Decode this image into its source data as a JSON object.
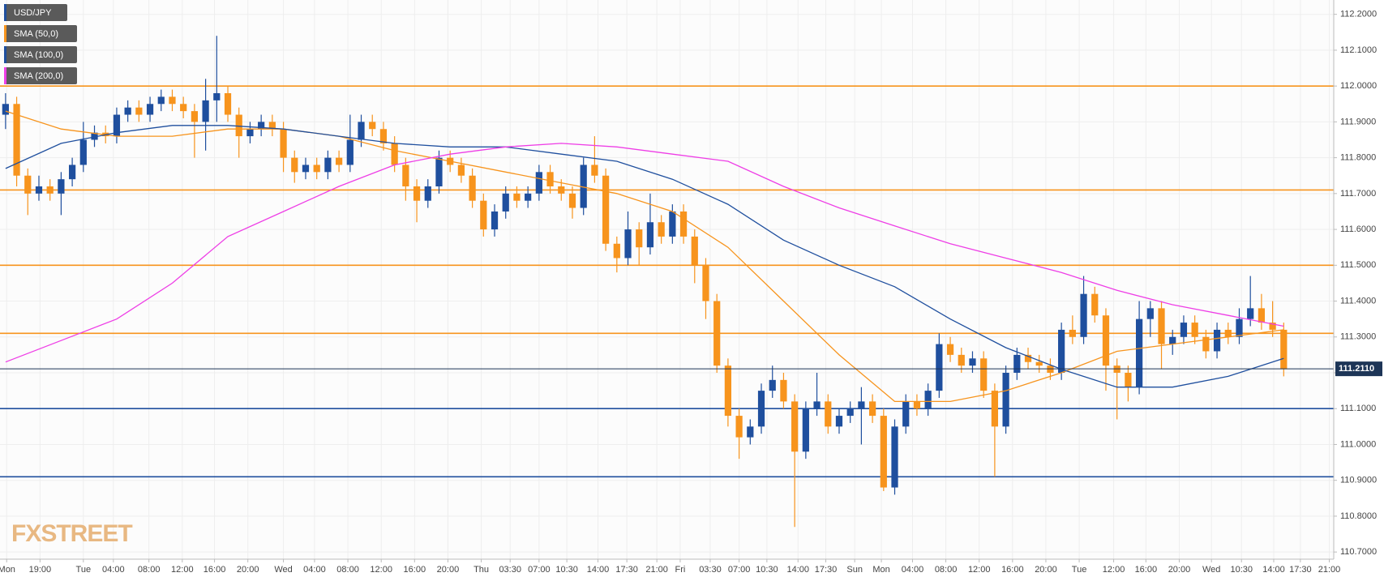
{
  "chart_data": {
    "type": "candlestick",
    "watermark": "FXSTREET",
    "grid": true,
    "xlim": [
      -0.5,
      119.5
    ],
    "ylim": [
      110.68,
      112.24
    ],
    "x": [
      0,
      1,
      2,
      3,
      4,
      5,
      6,
      7,
      8,
      9,
      10,
      11,
      12,
      13,
      14,
      15,
      16,
      17,
      18,
      19,
      20,
      21,
      22,
      23,
      24,
      25,
      26,
      27,
      28,
      29,
      30,
      31,
      32,
      33,
      34,
      35,
      36,
      37,
      38,
      39,
      40,
      41,
      42,
      43,
      44,
      45,
      46,
      47,
      48,
      49,
      50,
      51,
      52,
      53,
      54,
      55,
      56,
      57,
      58,
      59,
      60,
      61,
      62,
      63,
      64,
      65,
      66,
      67,
      68,
      69,
      70,
      71,
      72,
      73,
      74,
      75,
      76,
      77,
      78,
      79,
      80,
      81,
      82,
      83,
      84,
      85,
      86,
      87,
      88,
      89,
      90,
      91,
      92,
      93,
      94,
      95,
      96,
      97,
      98,
      99,
      100,
      101,
      102,
      103,
      104,
      105,
      106,
      107,
      108,
      109,
      110,
      111,
      112,
      113,
      114,
      115
    ],
    "series": [
      {
        "name": "USD/JPY",
        "up_color": "#1f4f9e",
        "down_color": "#f7941d",
        "open": [
          111.92,
          111.95,
          111.75,
          111.7,
          111.72,
          111.7,
          111.74,
          111.78,
          111.85,
          111.87,
          111.86,
          111.92,
          111.94,
          111.92,
          111.95,
          111.97,
          111.95,
          111.93,
          111.9,
          111.96,
          111.98,
          111.92,
          111.86,
          111.88,
          111.9,
          111.88,
          111.8,
          111.76,
          111.78,
          111.76,
          111.8,
          111.78,
          111.85,
          111.9,
          111.88,
          111.84,
          111.78,
          111.72,
          111.68,
          111.72,
          111.8,
          111.78,
          111.75,
          111.68,
          111.6,
          111.65,
          111.7,
          111.68,
          111.7,
          111.76,
          111.72,
          111.7,
          111.66,
          111.78,
          111.75,
          111.56,
          111.52,
          111.6,
          111.55,
          111.62,
          111.58,
          111.65,
          111.58,
          111.5,
          111.4,
          111.22,
          111.08,
          111.02,
          111.05,
          111.15,
          111.18,
          111.12,
          110.98,
          111.1,
          111.12,
          111.05,
          111.08,
          111.1,
          111.12,
          111.08,
          110.88,
          111.05,
          111.12,
          111.1,
          111.15,
          111.28,
          111.25,
          111.22,
          111.24,
          111.15,
          111.05,
          111.2,
          111.25,
          111.23,
          111.22,
          111.2,
          111.32,
          111.3,
          111.42,
          111.36,
          111.22,
          111.2,
          111.16,
          111.35,
          111.38,
          111.28,
          111.3,
          111.34,
          111.3,
          111.26,
          111.32,
          111.3,
          111.35,
          111.38,
          111.34,
          111.32
        ],
        "high": [
          111.98,
          111.97,
          111.77,
          111.75,
          111.74,
          111.76,
          111.8,
          111.9,
          111.89,
          111.89,
          111.94,
          111.96,
          111.96,
          111.97,
          111.99,
          111.99,
          111.97,
          111.95,
          112.02,
          112.14,
          112.0,
          111.94,
          111.9,
          111.92,
          111.92,
          111.9,
          111.82,
          111.8,
          111.8,
          111.82,
          111.82,
          111.92,
          111.92,
          111.92,
          111.9,
          111.86,
          111.8,
          111.74,
          111.74,
          111.82,
          111.82,
          111.8,
          111.77,
          111.7,
          111.67,
          111.72,
          111.72,
          111.72,
          111.78,
          111.78,
          111.74,
          111.72,
          111.8,
          111.86,
          111.77,
          111.58,
          111.65,
          111.62,
          111.7,
          111.64,
          111.67,
          111.67,
          111.6,
          111.52,
          111.42,
          111.24,
          111.1,
          111.07,
          111.17,
          111.22,
          111.2,
          111.14,
          111.12,
          111.2,
          111.14,
          111.1,
          111.12,
          111.16,
          111.14,
          111.1,
          111.07,
          111.14,
          111.14,
          111.17,
          111.31,
          111.3,
          111.27,
          111.26,
          111.26,
          111.17,
          111.22,
          111.27,
          111.27,
          111.25,
          111.24,
          111.34,
          111.36,
          111.47,
          111.44,
          111.38,
          111.24,
          111.22,
          111.4,
          111.4,
          111.4,
          111.32,
          111.36,
          111.36,
          111.32,
          111.34,
          111.34,
          111.38,
          111.47,
          111.42,
          111.4,
          111.34
        ],
        "low": [
          111.88,
          111.72,
          111.64,
          111.68,
          111.68,
          111.64,
          111.72,
          111.76,
          111.83,
          111.84,
          111.84,
          111.9,
          111.9,
          111.9,
          111.93,
          111.93,
          111.91,
          111.8,
          111.82,
          111.9,
          111.9,
          111.8,
          111.84,
          111.86,
          111.86,
          111.76,
          111.73,
          111.74,
          111.74,
          111.74,
          111.76,
          111.76,
          111.83,
          111.86,
          111.82,
          111.76,
          111.68,
          111.62,
          111.66,
          111.7,
          111.76,
          111.73,
          111.66,
          111.58,
          111.58,
          111.63,
          111.66,
          111.66,
          111.68,
          111.7,
          111.68,
          111.63,
          111.64,
          111.73,
          111.54,
          111.48,
          111.5,
          111.5,
          111.53,
          111.56,
          111.56,
          111.56,
          111.45,
          111.35,
          111.2,
          111.05,
          110.96,
          111.0,
          111.03,
          111.13,
          111.1,
          110.77,
          110.96,
          111.08,
          111.03,
          111.03,
          111.06,
          111.0,
          111.06,
          110.87,
          110.86,
          111.03,
          111.08,
          111.08,
          111.13,
          111.23,
          111.2,
          111.2,
          111.13,
          110.91,
          111.03,
          111.18,
          111.21,
          111.2,
          111.18,
          111.18,
          111.28,
          111.28,
          111.34,
          111.15,
          111.07,
          111.12,
          111.14,
          111.3,
          111.21,
          111.25,
          111.28,
          111.28,
          111.24,
          111.24,
          111.28,
          111.28,
          111.33,
          111.32,
          111.3,
          111.19
        ],
        "close": [
          111.95,
          111.75,
          111.7,
          111.72,
          111.7,
          111.74,
          111.78,
          111.85,
          111.87,
          111.86,
          111.92,
          111.94,
          111.92,
          111.95,
          111.97,
          111.95,
          111.93,
          111.9,
          111.96,
          111.98,
          111.92,
          111.86,
          111.88,
          111.9,
          111.88,
          111.8,
          111.76,
          111.78,
          111.76,
          111.8,
          111.78,
          111.85,
          111.9,
          111.88,
          111.84,
          111.78,
          111.72,
          111.68,
          111.72,
          111.8,
          111.78,
          111.75,
          111.68,
          111.6,
          111.65,
          111.7,
          111.68,
          111.7,
          111.76,
          111.72,
          111.7,
          111.66,
          111.78,
          111.75,
          111.56,
          111.52,
          111.6,
          111.55,
          111.62,
          111.58,
          111.65,
          111.58,
          111.5,
          111.4,
          111.22,
          111.08,
          111.02,
          111.05,
          111.15,
          111.18,
          111.12,
          110.98,
          111.1,
          111.12,
          111.05,
          111.08,
          111.1,
          111.12,
          111.08,
          110.88,
          111.05,
          111.12,
          111.1,
          111.15,
          111.28,
          111.25,
          111.22,
          111.24,
          111.15,
          111.05,
          111.2,
          111.25,
          111.23,
          111.22,
          111.2,
          111.32,
          111.3,
          111.42,
          111.36,
          111.22,
          111.2,
          111.16,
          111.35,
          111.38,
          111.28,
          111.3,
          111.34,
          111.3,
          111.26,
          111.32,
          111.3,
          111.35,
          111.38,
          111.34,
          111.32,
          111.21
        ]
      }
    ],
    "overlays": [
      {
        "name": "SMA (50,0)",
        "color": "#f7941d",
        "x": [
          0,
          5,
          10,
          15,
          20,
          25,
          30,
          35,
          40,
          45,
          50,
          55,
          60,
          65,
          70,
          75,
          80,
          85,
          90,
          95,
          100,
          105,
          110,
          115
        ],
        "values": [
          111.93,
          111.88,
          111.86,
          111.86,
          111.88,
          111.88,
          111.86,
          111.82,
          111.79,
          111.76,
          111.73,
          111.7,
          111.65,
          111.55,
          111.4,
          111.25,
          111.12,
          111.12,
          111.15,
          111.2,
          111.26,
          111.28,
          111.3,
          111.32
        ]
      },
      {
        "name": "SMA (100,0)",
        "color": "#1f4f9e",
        "x": [
          0,
          5,
          10,
          15,
          20,
          25,
          30,
          35,
          40,
          45,
          50,
          55,
          60,
          65,
          70,
          75,
          80,
          85,
          90,
          95,
          100,
          105,
          110,
          115
        ],
        "values": [
          111.77,
          111.84,
          111.87,
          111.89,
          111.89,
          111.88,
          111.86,
          111.84,
          111.83,
          111.83,
          111.81,
          111.79,
          111.74,
          111.67,
          111.57,
          111.5,
          111.44,
          111.35,
          111.27,
          111.21,
          111.16,
          111.16,
          111.19,
          111.24
        ]
      },
      {
        "name": "SMA (200,0)",
        "color": "#ee3ee6",
        "x": [
          0,
          5,
          10,
          15,
          20,
          25,
          30,
          35,
          40,
          45,
          50,
          55,
          60,
          65,
          70,
          75,
          80,
          85,
          90,
          95,
          100,
          105,
          110,
          115
        ],
        "values": [
          111.23,
          111.29,
          111.35,
          111.45,
          111.58,
          111.65,
          111.72,
          111.78,
          111.81,
          111.83,
          111.84,
          111.83,
          111.81,
          111.79,
          111.72,
          111.66,
          111.61,
          111.56,
          111.52,
          111.48,
          111.43,
          111.39,
          111.36,
          111.33
        ]
      }
    ],
    "levels": [
      {
        "value": 112.0,
        "color": "#f7941d"
      },
      {
        "value": 111.71,
        "color": "#f7941d"
      },
      {
        "value": 111.5,
        "color": "#f7941d"
      },
      {
        "value": 111.31,
        "color": "#f7941d"
      },
      {
        "value": 111.1,
        "color": "#1f4f9e"
      },
      {
        "value": 110.91,
        "color": "#1f4f9e"
      }
    ],
    "last_price": {
      "value": 111.211,
      "label": "111.2110",
      "color": "#1d3557"
    },
    "yticks": [
      {
        "value": 110.7,
        "label": "110.7000"
      },
      {
        "value": 110.8,
        "label": "110.8000"
      },
      {
        "value": 110.9,
        "label": "110.9000"
      },
      {
        "value": 111.0,
        "label": "111.0000"
      },
      {
        "value": 111.1,
        "label": "111.1000"
      },
      {
        "value": 111.2,
        "label": "111.2000"
      },
      {
        "value": 111.3,
        "label": "111.3000"
      },
      {
        "value": 111.4,
        "label": "111.4000"
      },
      {
        "value": 111.5,
        "label": "111.5000"
      },
      {
        "value": 111.6,
        "label": "111.6000"
      },
      {
        "value": 111.7,
        "label": "111.7000"
      },
      {
        "value": 111.8,
        "label": "111.8000"
      },
      {
        "value": 111.9,
        "label": "111.9000"
      },
      {
        "value": 112.0,
        "label": "112.0000"
      },
      {
        "value": 112.1,
        "label": "112.1000"
      },
      {
        "value": 112.2,
        "label": "112.2000"
      }
    ],
    "xticks": [
      {
        "value": 0.1,
        "label": "Mon"
      },
      {
        "value": 3.1,
        "label": "19:00"
      },
      {
        "value": 7.0,
        "label": "Tue"
      },
      {
        "value": 9.7,
        "label": "04:00"
      },
      {
        "value": 12.9,
        "label": "08:00"
      },
      {
        "value": 15.9,
        "label": "12:00"
      },
      {
        "value": 18.8,
        "label": "16:00"
      },
      {
        "value": 21.8,
        "label": "20:00"
      },
      {
        "value": 25.0,
        "label": "Wed"
      },
      {
        "value": 27.8,
        "label": "04:00"
      },
      {
        "value": 30.8,
        "label": "08:00"
      },
      {
        "value": 33.8,
        "label": "12:00"
      },
      {
        "value": 36.8,
        "label": "16:00"
      },
      {
        "value": 39.8,
        "label": "20:00"
      },
      {
        "value": 42.8,
        "label": "Thu"
      },
      {
        "value": 45.4,
        "label": "03:30"
      },
      {
        "value": 48.0,
        "label": "07:00"
      },
      {
        "value": 50.5,
        "label": "10:30"
      },
      {
        "value": 53.3,
        "label": "14:00"
      },
      {
        "value": 55.9,
        "label": "17:30"
      },
      {
        "value": 58.6,
        "label": "21:00"
      },
      {
        "value": 60.7,
        "label": "Fri"
      },
      {
        "value": 63.4,
        "label": "03:30"
      },
      {
        "value": 66.0,
        "label": "07:00"
      },
      {
        "value": 68.5,
        "label": "10:30"
      },
      {
        "value": 71.3,
        "label": "14:00"
      },
      {
        "value": 73.8,
        "label": "17:30"
      },
      {
        "value": 76.4,
        "label": "Sun"
      },
      {
        "value": 78.8,
        "label": "Mon"
      },
      {
        "value": 81.6,
        "label": "04:00"
      },
      {
        "value": 84.6,
        "label": "08:00"
      },
      {
        "value": 87.6,
        "label": "12:00"
      },
      {
        "value": 90.6,
        "label": "16:00"
      },
      {
        "value": 93.6,
        "label": "20:00"
      },
      {
        "value": 96.6,
        "label": "Tue"
      },
      {
        "value": 99.7,
        "label": "12:00"
      },
      {
        "value": 102.6,
        "label": "16:00"
      },
      {
        "value": 105.6,
        "label": "20:00"
      },
      {
        "value": 108.5,
        "label": "Wed"
      },
      {
        "value": 111.2,
        "label": "10:30"
      },
      {
        "value": 114.1,
        "label": "14:00"
      },
      {
        "value": 116.5,
        "label": "17:30"
      },
      {
        "value": 119.1,
        "label": "21:00"
      }
    ]
  }
}
